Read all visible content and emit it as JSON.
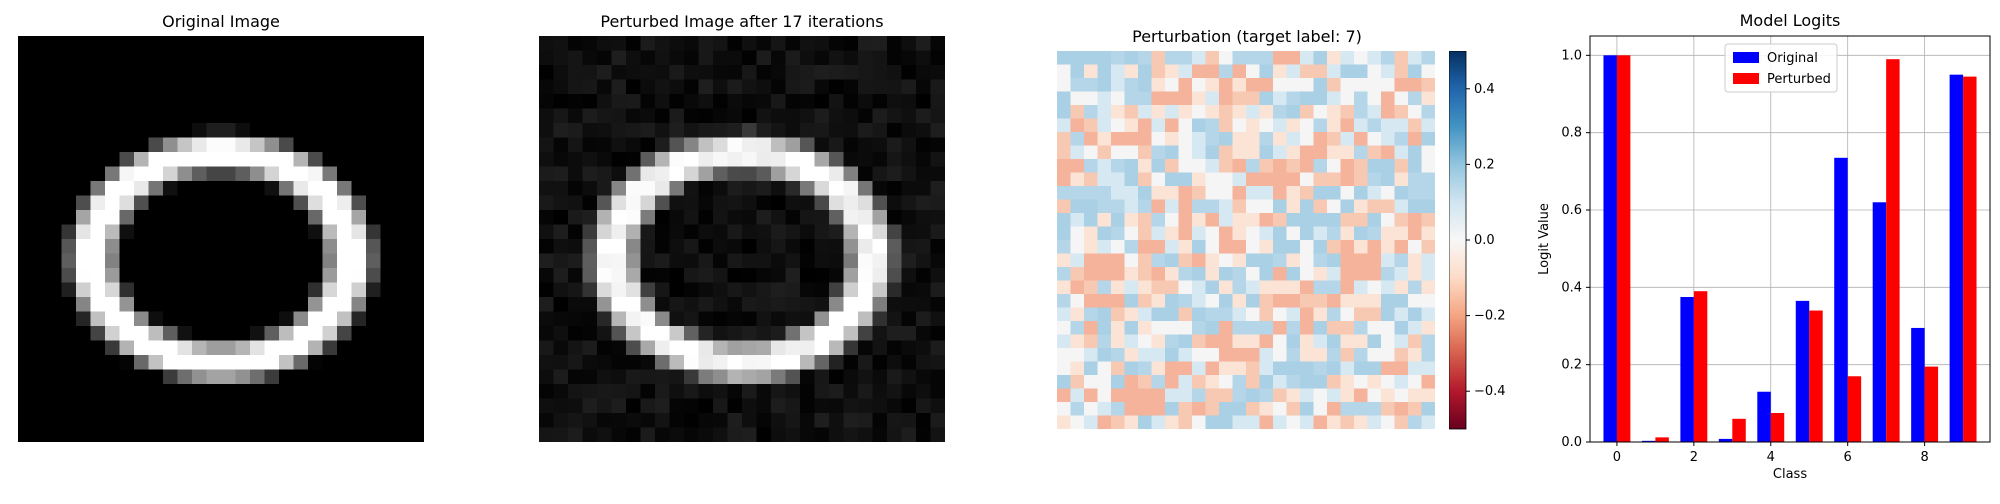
{
  "panels": {
    "original": {
      "title": "Original Image"
    },
    "perturbed": {
      "title": "Perturbed Image after 17 iterations"
    },
    "perturbation": {
      "title": "Perturbation (target label: 7)",
      "colorbar_ticks": [
        "0.4",
        "0.2",
        "0.0",
        "−0.2",
        "−0.4"
      ],
      "colorbar_range": [
        -0.5,
        0.5
      ]
    }
  },
  "chart_data": {
    "type": "bar",
    "title": "Model Logits",
    "xlabel": "Class",
    "ylabel": "Logit Value",
    "categories": [
      0,
      1,
      2,
      3,
      4,
      5,
      6,
      7,
      8,
      9
    ],
    "xticks": [
      "0",
      "2",
      "4",
      "6",
      "8"
    ],
    "yticks": [
      "0.0",
      "0.2",
      "0.4",
      "0.6",
      "0.8",
      "1.0"
    ],
    "ylim": [
      0,
      1.05
    ],
    "grid": true,
    "legend_position": "upper center",
    "series": [
      {
        "name": "Original",
        "color": "#0000ff",
        "values": [
          1.0,
          0.003,
          0.375,
          0.008,
          0.13,
          0.365,
          0.735,
          0.62,
          0.295,
          0.95
        ]
      },
      {
        "name": "Perturbed",
        "color": "#ff0000",
        "values": [
          1.0,
          0.012,
          0.39,
          0.06,
          0.075,
          0.34,
          0.17,
          0.99,
          0.195,
          0.945
        ]
      }
    ]
  }
}
